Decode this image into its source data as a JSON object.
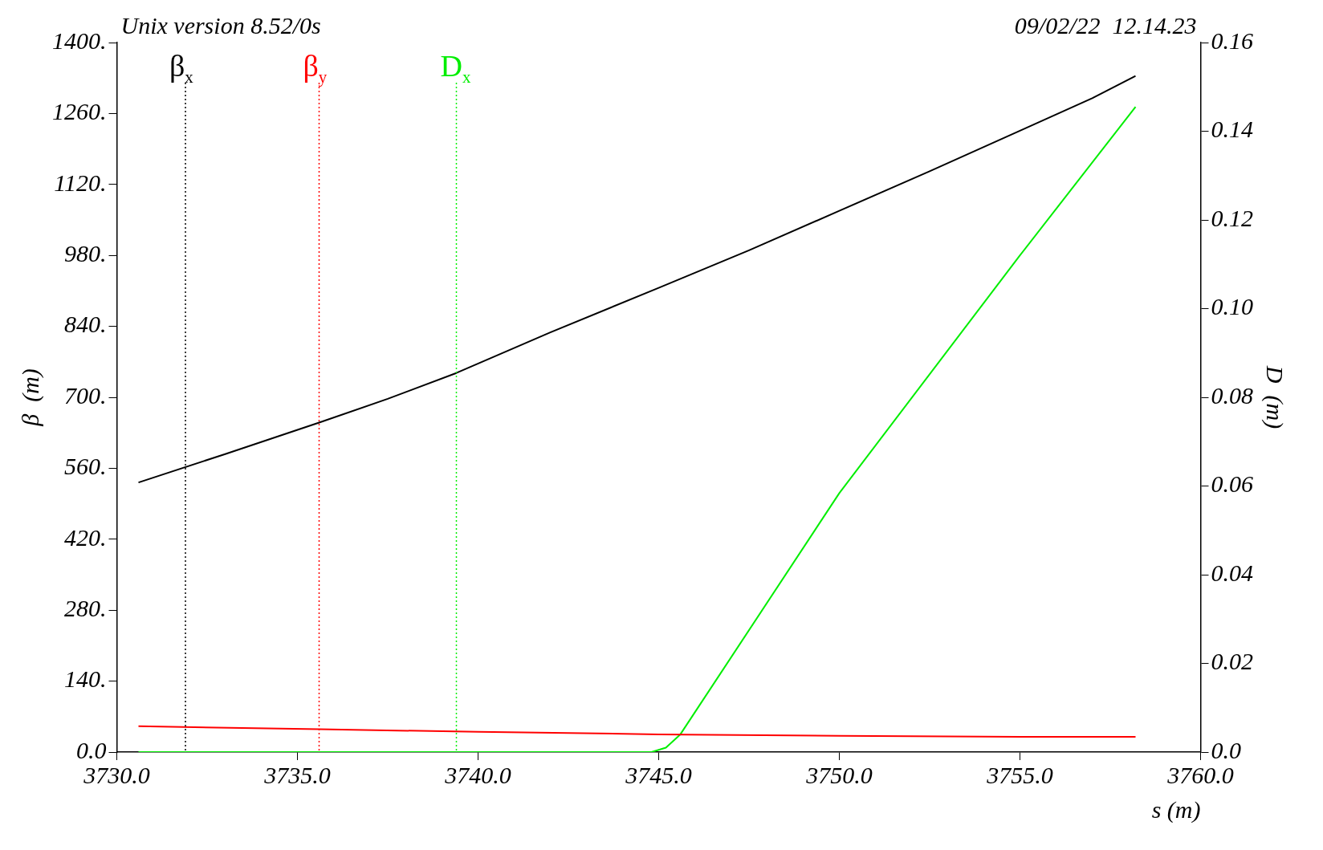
{
  "chart_data": {
    "type": "line",
    "xlabel": "s (m)",
    "ylabel": "β  (m)",
    "y2label": "D  (m)",
    "annotations": [
      "Unix version 8.52/0s",
      "09/02/22  12.14.23"
    ],
    "xlim": [
      3730,
      3760
    ],
    "xticks": [
      {
        "value": 3730,
        "label": "3730.0"
      },
      {
        "value": 3735,
        "label": "3735.0"
      },
      {
        "value": 3740,
        "label": "3740.0"
      },
      {
        "value": 3745,
        "label": "3745.0"
      },
      {
        "value": 3750,
        "label": "3750.0"
      },
      {
        "value": 3755,
        "label": "3755.0"
      },
      {
        "value": 3760,
        "label": "3760.0"
      }
    ],
    "ylim": [
      0,
      1400
    ],
    "yticks": [
      {
        "value": 0,
        "label": "0.0"
      },
      {
        "value": 140,
        "label": "140."
      },
      {
        "value": 280,
        "label": "280."
      },
      {
        "value": 420,
        "label": "420."
      },
      {
        "value": 560,
        "label": "560."
      },
      {
        "value": 700,
        "label": "700."
      },
      {
        "value": 840,
        "label": "840."
      },
      {
        "value": 980,
        "label": "980."
      },
      {
        "value": 1120,
        "label": "1120."
      },
      {
        "value": 1260,
        "label": "1260."
      },
      {
        "value": 1400,
        "label": "1400."
      }
    ],
    "y2lim": [
      0,
      0.16
    ],
    "y2ticks": [
      {
        "value": 0,
        "label": "0.0"
      },
      0.02,
      0.04,
      0.06,
      0.08,
      {
        "value": 0.1,
        "label": "0.10"
      },
      0.12,
      0.14,
      0.16
    ],
    "grid": false,
    "legend": false,
    "marker": "none",
    "line_style": "solid",
    "series": [
      {
        "color": "#000000",
        "x": [
          3730.6,
          3733,
          3735.6,
          3737.5,
          3739.4,
          3742,
          3745,
          3747.5,
          3750,
          3752.5,
          3755,
          3757,
          3758.2
        ],
        "values": [
          532,
          588,
          650,
          697,
          748,
          828,
          916,
          990,
          1068,
          1146,
          1226,
          1290,
          1334
        ]
      },
      {
        "color": "#ff0000",
        "x": [
          3730.6,
          3735.6,
          3740,
          3745,
          3750,
          3755,
          3758.2
        ],
        "values": [
          51,
          45,
          40,
          35,
          32,
          30,
          30
        ]
      },
      {
        "color": "#00ee00",
        "axis": "y2",
        "x": [
          3730.6,
          3744.8,
          3745.2,
          3745.6,
          3750,
          3755,
          3758.2
        ],
        "values": [
          0,
          0,
          0.001,
          0.004,
          0.0584,
          0.112,
          0.1455
        ]
      }
    ],
    "ref_lines": [
      {
        "axis": "x",
        "value": 3731.9,
        "label": "β$_{x}$",
        "color": "#000000",
        "line_style": "dotted"
      },
      {
        "axis": "x",
        "value": 3735.6,
        "label": "β$_{y}$",
        "color": "#ff0000",
        "line_style": "dotted"
      },
      {
        "axis": "x",
        "value": 3739.4,
        "label": "D$_{x}$",
        "color": "#00ee00",
        "line_style": "dotted"
      }
    ]
  }
}
